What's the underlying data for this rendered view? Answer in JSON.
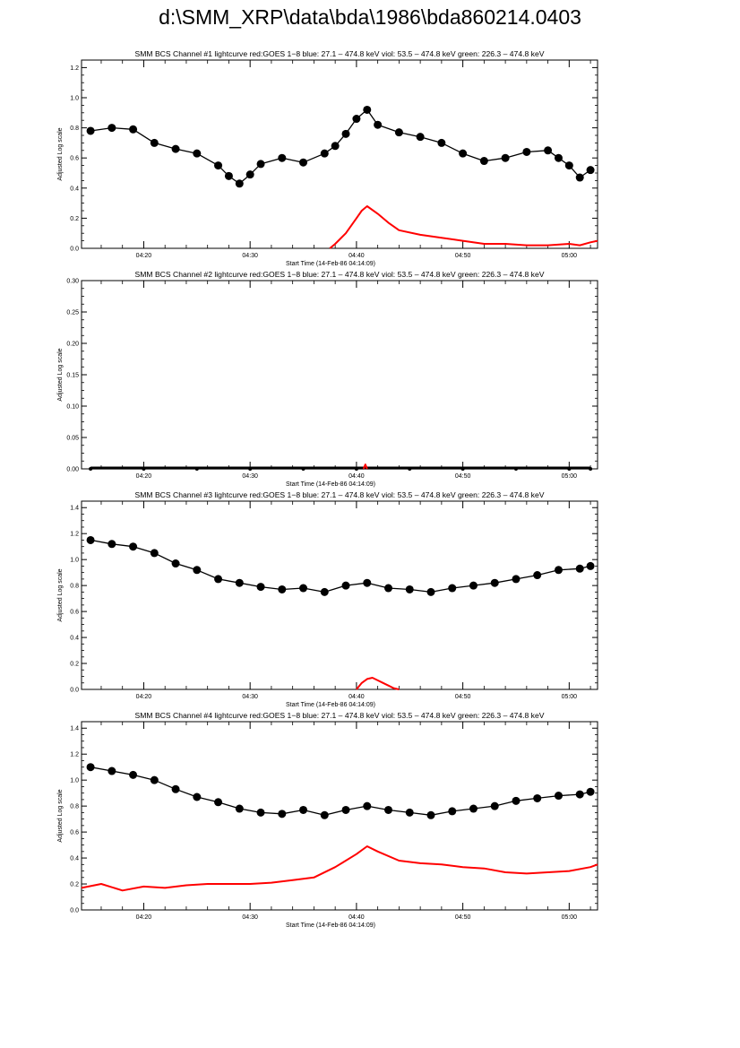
{
  "page": {
    "title": "d:\\SMM_XRP\\data\\bda\\1986\\bda860214.0403"
  },
  "colors": {
    "bcs": "#000000",
    "goes": "#ff0000",
    "axes": "#000000"
  },
  "chart_data": [
    {
      "type": "line",
      "title": "SMM BCS Channel #1 lightcurve  red:GOES 1−8  blue: 27.1 – 474.8 keV  viol: 53.5 – 474.8 keV  green: 226.3 – 474.8 keV",
      "xlabel": "Start Time (14-Feb-86 04:14:09)",
      "ylabel": "Adjusted Log scale",
      "x_unit": "UT time",
      "xlim": [
        "04:14:09",
        "05:02:40"
      ],
      "xticks": [
        "04:20",
        "04:30",
        "04:40",
        "04:50",
        "05:00"
      ],
      "ylim": [
        0,
        1.25
      ],
      "yticks": [
        "0.0",
        "0.2",
        "0.4",
        "0.6",
        "0.8",
        "1.0",
        "1.2"
      ],
      "series": [
        {
          "role": "bcs",
          "style": "line+markers",
          "x": [
            "04:15",
            "04:17",
            "04:19",
            "04:21",
            "04:23",
            "04:25",
            "04:27",
            "04:28",
            "04:29",
            "04:30",
            "04:31",
            "04:33",
            "04:35",
            "04:37",
            "04:38",
            "04:39",
            "04:40",
            "04:41",
            "04:42",
            "04:44",
            "04:46",
            "04:48",
            "04:50",
            "04:52",
            "04:54",
            "04:56",
            "04:58",
            "04:59",
            "05:00",
            "05:01",
            "05:02"
          ],
          "values": [
            0.78,
            0.8,
            0.79,
            0.7,
            0.66,
            0.63,
            0.55,
            0.48,
            0.43,
            0.49,
            0.56,
            0.6,
            0.57,
            0.63,
            0.68,
            0.76,
            0.86,
            0.92,
            0.82,
            0.77,
            0.74,
            0.7,
            0.63,
            0.58,
            0.6,
            0.64,
            0.65,
            0.6,
            0.55,
            0.47,
            0.52
          ]
        },
        {
          "role": "goes",
          "style": "line",
          "x": [
            "04:37:30",
            "04:38",
            "04:39",
            "04:40",
            "04:40:30",
            "04:41",
            "04:42",
            "04:43",
            "04:44",
            "04:46",
            "04:48",
            "04:50",
            "04:52",
            "04:54",
            "04:56",
            "04:58",
            "05:00",
            "05:01",
            "05:02",
            "05:02:40"
          ],
          "values": [
            0.0,
            0.03,
            0.1,
            0.2,
            0.25,
            0.28,
            0.23,
            0.17,
            0.12,
            0.09,
            0.07,
            0.05,
            0.03,
            0.03,
            0.02,
            0.02,
            0.03,
            0.02,
            0.04,
            0.05
          ]
        }
      ]
    },
    {
      "type": "line",
      "title": "SMM BCS Channel #2 lightcurve  red:GOES 1−8  blue: 27.1 – 474.8 keV  viol: 53.5 – 474.8 keV  green: 226.3 – 474.8 keV",
      "xlabel": "Start Time (14-Feb-86 04:14:09)",
      "ylabel": "Adjusted Log scale",
      "x_unit": "UT time",
      "xlim": [
        "04:14:09",
        "05:02:40"
      ],
      "xticks": [
        "04:20",
        "04:30",
        "04:40",
        "04:50",
        "05:00"
      ],
      "ylim": [
        0,
        0.3
      ],
      "yticks": [
        "0.00",
        "0.05",
        "0.10",
        "0.15",
        "0.20",
        "0.25",
        "0.30"
      ],
      "series": [
        {
          "role": "bcs",
          "style": "line+markers",
          "x": [
            "04:15",
            "04:20",
            "04:25",
            "04:30",
            "04:35",
            "04:40",
            "04:45",
            "04:50",
            "04:55",
            "05:00",
            "05:02"
          ],
          "values": [
            0,
            0,
            0,
            0,
            0,
            0,
            0,
            0,
            0,
            0,
            0
          ]
        },
        {
          "role": "goes",
          "style": "line",
          "x": [
            "04:40:40",
            "04:40:50",
            "04:41:00"
          ],
          "values": [
            0.0,
            0.007,
            0.0
          ]
        }
      ]
    },
    {
      "type": "line",
      "title": "SMM BCS Channel #3 lightcurve  red:GOES 1−8  blue: 27.1 – 474.8 keV  viol: 53.5 – 474.8 keV  green: 226.3 – 474.8 keV",
      "xlabel": "Start Time (14-Feb-86 04:14:09)",
      "ylabel": "Adjusted Log scale",
      "x_unit": "UT time",
      "xlim": [
        "04:14:09",
        "05:02:40"
      ],
      "xticks": [
        "04:20",
        "04:30",
        "04:40",
        "04:50",
        "05:00"
      ],
      "ylim": [
        0,
        1.45
      ],
      "yticks": [
        "0.0",
        "0.2",
        "0.4",
        "0.6",
        "0.8",
        "1.0",
        "1.2",
        "1.4"
      ],
      "series": [
        {
          "role": "bcs",
          "style": "line+markers",
          "x": [
            "04:15",
            "04:17",
            "04:19",
            "04:21",
            "04:23",
            "04:25",
            "04:27",
            "04:29",
            "04:31",
            "04:33",
            "04:35",
            "04:37",
            "04:39",
            "04:41",
            "04:43",
            "04:45",
            "04:47",
            "04:49",
            "04:51",
            "04:53",
            "04:55",
            "04:57",
            "04:59",
            "05:01",
            "05:02"
          ],
          "values": [
            1.15,
            1.12,
            1.1,
            1.05,
            0.97,
            0.92,
            0.85,
            0.82,
            0.79,
            0.77,
            0.78,
            0.75,
            0.8,
            0.82,
            0.78,
            0.77,
            0.75,
            0.78,
            0.8,
            0.82,
            0.85,
            0.88,
            0.92,
            0.93,
            0.95
          ]
        },
        {
          "role": "goes",
          "style": "line",
          "x": [
            "04:40:00",
            "04:40:30",
            "04:41:00",
            "04:41:30",
            "04:42:00",
            "04:42:30",
            "04:43:00",
            "04:43:30",
            "04:44:00"
          ],
          "values": [
            0.0,
            0.05,
            0.08,
            0.09,
            0.07,
            0.05,
            0.03,
            0.01,
            0.0
          ]
        }
      ]
    },
    {
      "type": "line",
      "title": "SMM BCS Channel #4 lightcurve  red:GOES 1−8  blue: 27.1 – 474.8 keV  viol: 53.5 – 474.8 keV  green: 226.3 – 474.8 keV",
      "xlabel": "Start Time (14-Feb-86 04:14:09)",
      "ylabel": "Adjusted Log scale",
      "x_unit": "UT time",
      "xlim": [
        "04:14:09",
        "05:02:40"
      ],
      "xticks": [
        "04:20",
        "04:30",
        "04:40",
        "04:50",
        "05:00"
      ],
      "ylim": [
        0,
        1.45
      ],
      "yticks": [
        "0.0",
        "0.2",
        "0.4",
        "0.6",
        "0.8",
        "1.0",
        "1.2",
        "1.4"
      ],
      "series": [
        {
          "role": "bcs",
          "style": "line+markers",
          "x": [
            "04:15",
            "04:17",
            "04:19",
            "04:21",
            "04:23",
            "04:25",
            "04:27",
            "04:29",
            "04:31",
            "04:33",
            "04:35",
            "04:37",
            "04:39",
            "04:41",
            "04:43",
            "04:45",
            "04:47",
            "04:49",
            "04:51",
            "04:53",
            "04:55",
            "04:57",
            "04:59",
            "05:01",
            "05:02"
          ],
          "values": [
            1.1,
            1.07,
            1.04,
            1.0,
            0.93,
            0.87,
            0.83,
            0.78,
            0.75,
            0.74,
            0.77,
            0.73,
            0.77,
            0.8,
            0.77,
            0.75,
            0.73,
            0.76,
            0.78,
            0.8,
            0.84,
            0.86,
            0.88,
            0.89,
            0.91
          ]
        },
        {
          "role": "goes",
          "style": "line",
          "x": [
            "04:14:09",
            "04:16",
            "04:18",
            "04:20",
            "04:22",
            "04:24",
            "04:26",
            "04:28",
            "04:30",
            "04:32",
            "04:34",
            "04:36",
            "04:38",
            "04:40",
            "04:41",
            "04:42",
            "04:44",
            "04:46",
            "04:48",
            "04:50",
            "04:52",
            "04:54",
            "04:56",
            "04:58",
            "05:00",
            "05:02",
            "05:02:40"
          ],
          "values": [
            0.17,
            0.2,
            0.15,
            0.18,
            0.17,
            0.19,
            0.2,
            0.2,
            0.2,
            0.21,
            0.23,
            0.25,
            0.33,
            0.43,
            0.49,
            0.45,
            0.38,
            0.36,
            0.35,
            0.33,
            0.32,
            0.29,
            0.28,
            0.29,
            0.3,
            0.33,
            0.35
          ]
        }
      ]
    }
  ]
}
